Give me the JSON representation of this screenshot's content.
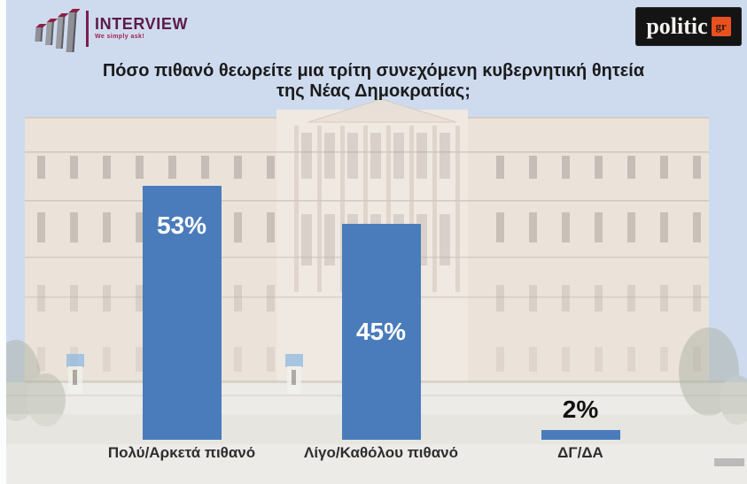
{
  "logos": {
    "interview": {
      "name": "INTERVIEW",
      "tagline": "We simply ask!"
    },
    "politic": {
      "text": "politic",
      "badge": "gr"
    }
  },
  "title": {
    "line1": "Πόσο πιθανό θεωρείτε μια τρίτη συνεχόμενη κυβερνητική θητεία",
    "line2": "της Νέας Δημοκρατίας;"
  },
  "chart_data": {
    "type": "bar",
    "title": "Πόσο πιθανό θεωρείτε μια τρίτη συνεχόμενη κυβερνητική θητεία της Νέας Δημοκρατίας;",
    "categories": [
      "Πολύ/Αρκετά πιθανό",
      "Λίγο/Καθόλου πιθανό",
      "ΔΓ/ΔΑ"
    ],
    "values": [
      53,
      45,
      2
    ],
    "data_labels": [
      "53%",
      "45%",
      "2%"
    ],
    "label_placements": [
      "inside-top",
      "middle",
      "outside-top"
    ],
    "label_colors": [
      "#ffffff",
      "#ffffff",
      "#111111"
    ],
    "bar_color": "#4a7cbb",
    "ylim": [
      0,
      60
    ],
    "grid": false,
    "legend": false,
    "background_image": "Hellenic Parliament building photo, faded"
  },
  "colors": {
    "page_bg_sky": "#cedbef",
    "page_bg_ground": "#ecebe7",
    "building_wall": "#f1e5d6",
    "bar_blue": "#4a7cbb",
    "title_text": "#1b1b1b",
    "category_text": "#2e2e2e",
    "interview_maroon": "#5e1b47",
    "interview_red": "#a2244d",
    "politic_bg": "#141414",
    "politic_orange": "#e8511f"
  }
}
